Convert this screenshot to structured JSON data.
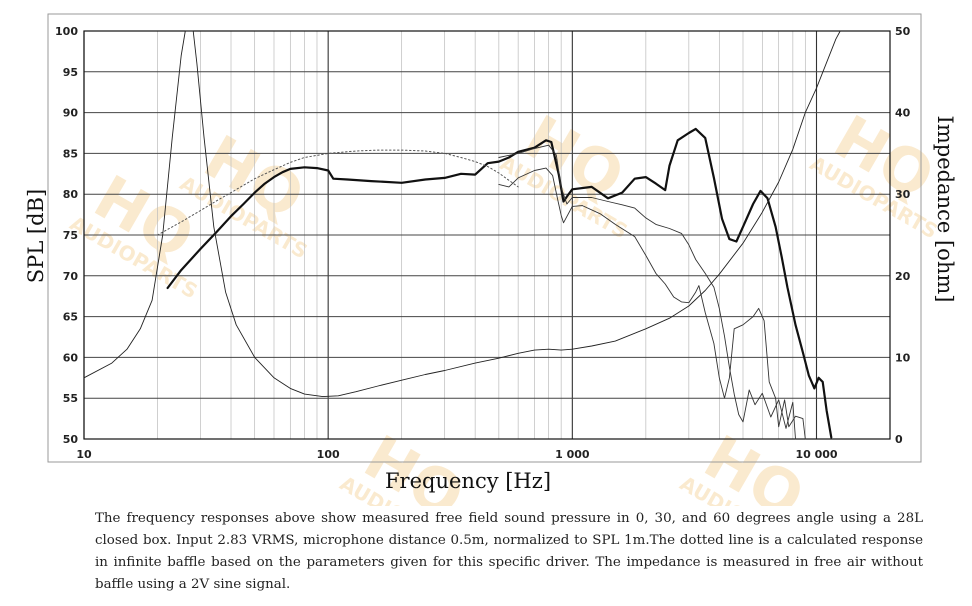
{
  "chart_data": {
    "type": "line",
    "xlabel": "Frequency [Hz]",
    "ylabel_left": "SPL [dB]",
    "ylabel_right": "Impedance [ohm]",
    "xscale": "log",
    "xlim": [
      10,
      20000
    ],
    "ylim_left": [
      50,
      100
    ],
    "ylim_right": [
      0,
      50
    ],
    "grid": true,
    "x_tick_labels": [
      "10",
      "100",
      "1 000",
      "10 000"
    ],
    "x_tick_values": [
      10,
      100,
      1000,
      10000
    ],
    "y_left_ticks": [
      50,
      55,
      60,
      65,
      70,
      75,
      80,
      85,
      90,
      95,
      100
    ],
    "y_right_ticks": [
      0,
      10,
      20,
      30,
      40,
      50
    ],
    "series": [
      {
        "style": "thick",
        "axis": "left",
        "color": "#111111",
        "points": [
          [
            22,
            68.5
          ],
          [
            25,
            70.7
          ],
          [
            30,
            73.3
          ],
          [
            35,
            75.4
          ],
          [
            40,
            77.3
          ],
          [
            45,
            78.8
          ],
          [
            50,
            80.2
          ],
          [
            55,
            81.3
          ],
          [
            60,
            82.1
          ],
          [
            65,
            82.7
          ],
          [
            70,
            83.1
          ],
          [
            80,
            83.3
          ],
          [
            90,
            83.2
          ],
          [
            100,
            82.9
          ],
          [
            105,
            81.9
          ],
          [
            120,
            81.8
          ],
          [
            150,
            81.6
          ],
          [
            200,
            81.4
          ],
          [
            250,
            81.8
          ],
          [
            300,
            82.0
          ],
          [
            350,
            82.5
          ],
          [
            400,
            82.4
          ],
          [
            450,
            83.8
          ],
          [
            500,
            84.0
          ],
          [
            550,
            84.5
          ],
          [
            600,
            85.2
          ],
          [
            700,
            85.7
          ],
          [
            780,
            86.6
          ],
          [
            820,
            86.4
          ],
          [
            880,
            82.4
          ],
          [
            920,
            79.1
          ],
          [
            960,
            79.9
          ],
          [
            1000,
            80.6
          ],
          [
            1200,
            80.9
          ],
          [
            1400,
            79.5
          ],
          [
            1600,
            80.2
          ],
          [
            1800,
            81.9
          ],
          [
            2000,
            82.1
          ],
          [
            2200,
            81.3
          ],
          [
            2400,
            80.5
          ],
          [
            2500,
            83.5
          ],
          [
            2700,
            86.6
          ],
          [
            3000,
            87.5
          ],
          [
            3200,
            88.0
          ],
          [
            3500,
            86.9
          ],
          [
            3800,
            82.0
          ],
          [
            4100,
            77.0
          ],
          [
            4400,
            74.5
          ],
          [
            4700,
            74.2
          ],
          [
            5000,
            76.0
          ],
          [
            5500,
            78.8
          ],
          [
            5900,
            80.4
          ],
          [
            6300,
            79.5
          ],
          [
            6800,
            76.0
          ],
          [
            7200,
            72.3
          ],
          [
            7600,
            68.6
          ],
          [
            8200,
            64.0
          ],
          [
            8800,
            60.6
          ],
          [
            9300,
            57.8
          ],
          [
            9800,
            56.2
          ],
          [
            10200,
            57.5
          ],
          [
            10600,
            57.0
          ],
          [
            11000,
            53.5
          ],
          [
            11500,
            50.2
          ]
        ]
      },
      {
        "style": "thin",
        "axis": "left",
        "color": "#333333",
        "points": [
          [
            500,
            84.5
          ],
          [
            600,
            85.0
          ],
          [
            700,
            85.6
          ],
          [
            800,
            86.0
          ],
          [
            860,
            84.8
          ],
          [
            900,
            80.8
          ],
          [
            950,
            78.8
          ],
          [
            1000,
            79.6
          ],
          [
            1200,
            79.6
          ],
          [
            1400,
            79.1
          ],
          [
            1600,
            78.7
          ],
          [
            1800,
            78.3
          ],
          [
            2000,
            77.1
          ],
          [
            2200,
            76.3
          ],
          [
            2500,
            75.8
          ],
          [
            2800,
            75.2
          ],
          [
            3000,
            73.8
          ],
          [
            3200,
            72.0
          ],
          [
            3500,
            70.3
          ],
          [
            3800,
            68.6
          ],
          [
            4000,
            66.0
          ],
          [
            4200,
            62.6
          ],
          [
            4400,
            58.8
          ],
          [
            4600,
            55.5
          ],
          [
            4800,
            53.0
          ],
          [
            5000,
            52.1
          ],
          [
            5300,
            56.0
          ],
          [
            5600,
            54.2
          ],
          [
            6000,
            55.6
          ],
          [
            6500,
            52.7
          ],
          [
            7000,
            54.8
          ],
          [
            7500,
            51.3
          ],
          [
            8000,
            54.5
          ],
          [
            8200,
            50.0
          ]
        ]
      },
      {
        "style": "thin",
        "axis": "left",
        "color": "#333333",
        "points": [
          [
            500,
            81.2
          ],
          [
            550,
            80.9
          ],
          [
            600,
            82.0
          ],
          [
            700,
            82.9
          ],
          [
            780,
            83.2
          ],
          [
            830,
            82.3
          ],
          [
            870,
            79.4
          ],
          [
            900,
            77.4
          ],
          [
            920,
            76.5
          ],
          [
            1000,
            78.5
          ],
          [
            1100,
            78.6
          ],
          [
            1300,
            77.6
          ],
          [
            1500,
            76.3
          ],
          [
            1800,
            74.8
          ],
          [
            2000,
            72.5
          ],
          [
            2200,
            70.3
          ],
          [
            2400,
            69.0
          ],
          [
            2600,
            67.4
          ],
          [
            2800,
            66.8
          ],
          [
            3000,
            66.7
          ],
          [
            3200,
            68.0
          ],
          [
            3300,
            68.8
          ],
          [
            3500,
            65.5
          ],
          [
            3800,
            61.7
          ],
          [
            4000,
            57.5
          ],
          [
            4200,
            55.0
          ],
          [
            4400,
            57.5
          ],
          [
            4600,
            63.5
          ],
          [
            5000,
            64.0
          ],
          [
            5500,
            65.0
          ],
          [
            5800,
            66.0
          ],
          [
            6100,
            64.5
          ],
          [
            6400,
            57.0
          ],
          [
            6800,
            55.0
          ],
          [
            7000,
            51.5
          ],
          [
            7400,
            54.8
          ],
          [
            7700,
            51.5
          ],
          [
            8200,
            52.8
          ],
          [
            8800,
            52.5
          ],
          [
            9000,
            50.0
          ]
        ]
      },
      {
        "style": "dotted",
        "axis": "left",
        "color": "#555555",
        "points": [
          [
            20,
            75.0
          ],
          [
            25,
            76.6
          ],
          [
            30,
            78.0
          ],
          [
            35,
            79.2
          ],
          [
            40,
            80.2
          ],
          [
            50,
            81.9
          ],
          [
            60,
            83.0
          ],
          [
            70,
            83.9
          ],
          [
            80,
            84.5
          ],
          [
            100,
            85.0
          ],
          [
            130,
            85.3
          ],
          [
            160,
            85.4
          ],
          [
            200,
            85.4
          ],
          [
            250,
            85.3
          ],
          [
            300,
            85.0
          ],
          [
            350,
            84.5
          ],
          [
            400,
            84.0
          ],
          [
            450,
            83.4
          ],
          [
            500,
            82.6
          ],
          [
            550,
            81.7
          ],
          [
            600,
            80.9
          ]
        ]
      },
      {
        "style": "thin",
        "axis": "right",
        "color": "#222222",
        "points": [
          [
            10,
            7.5
          ],
          [
            13,
            9.3
          ],
          [
            15,
            11.0
          ],
          [
            17,
            13.5
          ],
          [
            19,
            17.0
          ],
          [
            21,
            25.0
          ],
          [
            23,
            37.0
          ],
          [
            25,
            47.0
          ],
          [
            26,
            50.0
          ],
          [
            28,
            50.0
          ],
          [
            29,
            46.0
          ],
          [
            31,
            37.0
          ],
          [
            34,
            26.0
          ],
          [
            38,
            18.0
          ],
          [
            42,
            14.0
          ],
          [
            50,
            10.0
          ],
          [
            60,
            7.5
          ],
          [
            70,
            6.2
          ],
          [
            80,
            5.5
          ],
          [
            95,
            5.2
          ],
          [
            110,
            5.3
          ],
          [
            130,
            5.8
          ],
          [
            160,
            6.5
          ],
          [
            200,
            7.2
          ],
          [
            250,
            7.9
          ],
          [
            300,
            8.4
          ],
          [
            400,
            9.3
          ],
          [
            500,
            9.9
          ],
          [
            600,
            10.5
          ],
          [
            700,
            10.9
          ],
          [
            800,
            11.0
          ],
          [
            900,
            10.9
          ],
          [
            1000,
            11.0
          ],
          [
            1200,
            11.4
          ],
          [
            1500,
            12.0
          ],
          [
            2000,
            13.5
          ],
          [
            2500,
            14.8
          ],
          [
            3000,
            16.3
          ],
          [
            3500,
            18.2
          ],
          [
            4000,
            20.2
          ],
          [
            5000,
            24.0
          ],
          [
            6000,
            27.8
          ],
          [
            7000,
            31.5
          ],
          [
            8000,
            35.5
          ],
          [
            9000,
            40.0
          ],
          [
            10000,
            43.0
          ],
          [
            12000,
            49.0
          ],
          [
            12500,
            50.0
          ]
        ]
      }
    ]
  },
  "caption": "The frequency responses above show measured free field sound pressure in 0, 30, and 60 degrees angle using a 28L closed box. Input 2.83 VRMS, microphone distance 0.5m, normalized to SPL 1m.The dotted line is a calculated response in infinite baffle based on the parameters given for this specific driver. The impedance is measured in free air without baffle using a 2V sine signal.",
  "watermark": {
    "logo_text": "HQ",
    "sub_text": "AUDIOPARTS"
  }
}
